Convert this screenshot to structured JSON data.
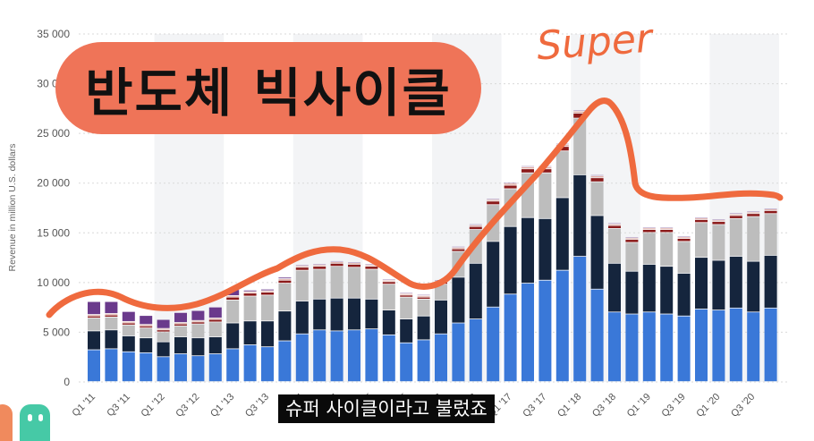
{
  "overlay": {
    "title": "반도체 빅사이클",
    "annotation": "Super",
    "subtitle": "슈퍼 사이클이라고 불렀죠"
  },
  "colors": {
    "pill": "#ef7458",
    "trend_line": "#ef6a3e",
    "bands": "#f3f4f6"
  },
  "chart_data": {
    "type": "bar",
    "stacked": true,
    "ylabel": "Revenue in million U.S. dollars",
    "ylim": [
      0,
      35000
    ],
    "yticks": [
      0,
      5000,
      10000,
      15000,
      20000,
      25000,
      30000,
      35000
    ],
    "ytick_labels": [
      "0",
      "5 000",
      "10 000",
      "15 000",
      "20 000",
      "25 000",
      "30 000",
      "35 000"
    ],
    "grid": true,
    "categories": [
      "Q1 '11",
      "Q2 '11",
      "Q3 '11",
      "Q4 '11",
      "Q1 '12",
      "Q2 '12",
      "Q3 '12",
      "Q4 '12",
      "Q1 '13",
      "Q2 '13",
      "Q3 '13",
      "Q4 '13",
      "Q1 '14",
      "Q2 '14",
      "Q3 '14",
      "Q4 '14",
      "Q1 '15",
      "Q2 '15",
      "Q3 '15",
      "Q4 '15",
      "Q1 '16",
      "Q2 '16",
      "Q3 '16",
      "Q4 '16",
      "Q1 '17",
      "Q2 '17",
      "Q3 '17",
      "Q4 '17",
      "Q1 '18",
      "Q2 '18",
      "Q3 '18",
      "Q4 '18",
      "Q1 '19",
      "Q2 '19",
      "Q3 '19",
      "Q4 '19",
      "Q1 '20",
      "Q2 '20",
      "Q3 '20",
      "Q4 '20"
    ],
    "x_tick_labels_shown": [
      "Q1 '11",
      "Q3 '11",
      "Q1 '12",
      "Q3 '12",
      "Q1 '13",
      "Q3 '13",
      "Q1 '14",
      "Q3 '14",
      "Q1 '15",
      "Q3 '15",
      "Q1 '16",
      "Q3 '16",
      "Q1 '17",
      "Q3 '17",
      "Q1 '18",
      "Q3 '18",
      "Q1 '19",
      "Q3 '19",
      "Q1 '20",
      "Q3 '20"
    ],
    "series": [
      {
        "color": "#3a78d8",
        "values": [
          3200,
          3300,
          3000,
          2900,
          2500,
          2800,
          2600,
          2800,
          3300,
          3700,
          3500,
          4100,
          4800,
          5200,
          5100,
          5200,
          5300,
          4700,
          3900,
          4200,
          4800,
          5900,
          6300,
          7500,
          8800,
          9900,
          10200,
          11200,
          12600,
          9300,
          7000,
          6800,
          7000,
          6800,
          6600,
          7300,
          7200,
          7400,
          7000,
          7400
        ]
      },
      {
        "color": "#15253d",
        "values": [
          1900,
          1900,
          1600,
          1500,
          1500,
          1700,
          1800,
          1700,
          2600,
          2400,
          2600,
          3000,
          3300,
          3100,
          3300,
          3200,
          3000,
          2500,
          2400,
          2400,
          3400,
          4600,
          5600,
          6600,
          6800,
          6600,
          6200,
          7300,
          8200,
          7400,
          4900,
          4300,
          4800,
          4800,
          4300,
          5200,
          5000,
          5200,
          5100,
          5300
        ]
      },
      {
        "color": "#bdbdbd",
        "values": [
          1300,
          1300,
          1100,
          1000,
          1000,
          1100,
          1400,
          1500,
          2300,
          2500,
          2600,
          2800,
          3100,
          3000,
          3200,
          3100,
          3000,
          2600,
          2200,
          1700,
          1600,
          2600,
          3400,
          3700,
          3800,
          4500,
          4600,
          4700,
          5700,
          3400,
          3500,
          2900,
          3200,
          3400,
          3200,
          3500,
          3600,
          3800,
          4500,
          4200
        ]
      },
      {
        "color": "#8b1a1a",
        "values": [
          200,
          200,
          200,
          200,
          200,
          200,
          200,
          250,
          300,
          300,
          300,
          300,
          300,
          300,
          300,
          300,
          300,
          250,
          200,
          200,
          200,
          250,
          300,
          350,
          350,
          400,
          400,
          450,
          500,
          400,
          300,
          300,
          300,
          300,
          300,
          300,
          300,
          300,
          300,
          300
        ]
      },
      {
        "color": "#e0b0a8",
        "values": [
          150,
          150,
          150,
          150,
          150,
          150,
          150,
          150,
          150,
          150,
          150,
          150,
          150,
          150,
          150,
          150,
          150,
          150,
          150,
          150,
          150,
          150,
          150,
          150,
          200,
          200,
          200,
          200,
          200,
          200,
          150,
          150,
          150,
          150,
          150,
          150,
          150,
          150,
          150,
          150
        ]
      },
      {
        "color": "#6a3a8c",
        "values": [
          1300,
          1200,
          1000,
          900,
          900,
          1000,
          1000,
          1100,
          600,
          150,
          150,
          150,
          100,
          100,
          100,
          100,
          100,
          100,
          100,
          100,
          100,
          100,
          100,
          100,
          100,
          100,
          100,
          100,
          100,
          100,
          100,
          100,
          100,
          100,
          100,
          100,
          100,
          100,
          100,
          100
        ]
      }
    ]
  }
}
